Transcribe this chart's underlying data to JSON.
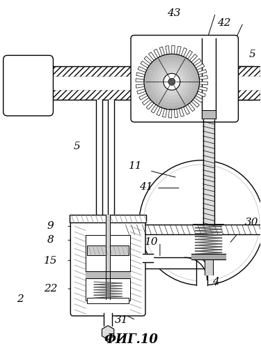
{
  "title": "ФИГ.10",
  "title_fontsize": 13,
  "background_color": "#ffffff",
  "line_color": "#000000",
  "pipe_hatch_color": "#999999",
  "gray_fill": "#cccccc",
  "dark_gray": "#888888"
}
